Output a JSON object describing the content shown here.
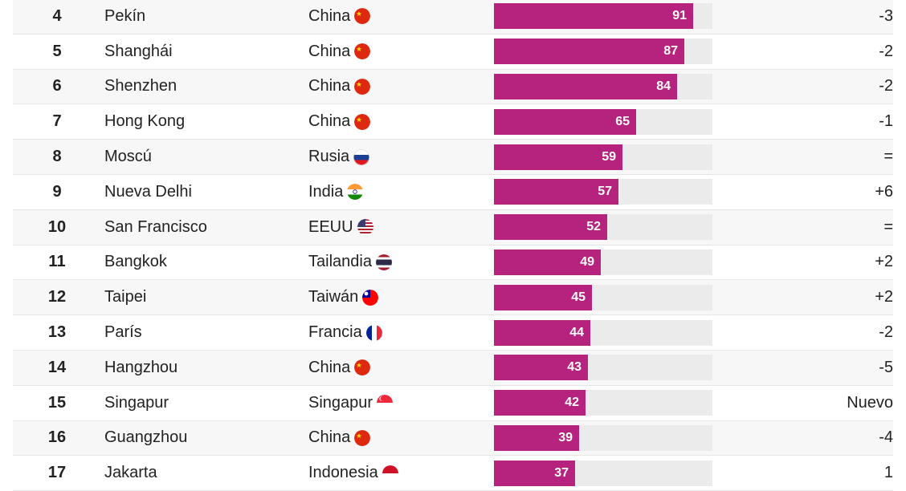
{
  "chart_data": {
    "type": "bar",
    "xlim": [
      0,
      100
    ],
    "rows": [
      {
        "rank": "4",
        "city": "Pekín",
        "country": "China",
        "flag": "china-flag-icon",
        "value": 91,
        "change": "-3"
      },
      {
        "rank": "5",
        "city": "Shanghái",
        "country": "China",
        "flag": "china-flag-icon",
        "value": 87,
        "change": "-2"
      },
      {
        "rank": "6",
        "city": "Shenzhen",
        "country": "China",
        "flag": "china-flag-icon",
        "value": 84,
        "change": "-2"
      },
      {
        "rank": "7",
        "city": "Hong Kong",
        "country": "China",
        "flag": "china-flag-icon",
        "value": 65,
        "change": "-1"
      },
      {
        "rank": "8",
        "city": "Moscú",
        "country": "Rusia",
        "flag": "russia-flag-icon",
        "value": 59,
        "change": "="
      },
      {
        "rank": "9",
        "city": "Nueva Delhi",
        "country": "India",
        "flag": "india-flag-icon",
        "value": 57,
        "change": "+6"
      },
      {
        "rank": "10",
        "city": "San Francisco",
        "country": "EEUU",
        "flag": "usa-flag-icon",
        "value": 52,
        "change": "="
      },
      {
        "rank": "11",
        "city": "Bangkok",
        "country": "Tailandia",
        "flag": "thailand-flag-icon",
        "value": 49,
        "change": "+2"
      },
      {
        "rank": "12",
        "city": "Taipei",
        "country": "Taiwán",
        "flag": "taiwan-flag-icon",
        "value": 45,
        "change": "+2"
      },
      {
        "rank": "13",
        "city": "París",
        "country": "Francia",
        "flag": "france-flag-icon",
        "value": 44,
        "change": "-2"
      },
      {
        "rank": "14",
        "city": "Hangzhou",
        "country": "China",
        "flag": "china-flag-icon",
        "value": 43,
        "change": "-5"
      },
      {
        "rank": "15",
        "city": "Singapur",
        "country": "Singapur",
        "flag": "singapore-flag-icon",
        "value": 42,
        "change": "Nuevo"
      },
      {
        "rank": "16",
        "city": "Guangzhou",
        "country": "China",
        "flag": "china-flag-icon",
        "value": 39,
        "change": "-4"
      },
      {
        "rank": "17",
        "city": "Jakarta",
        "country": "Indonesia",
        "flag": "indonesia-flag-icon",
        "value": 37,
        "change": "1"
      }
    ]
  },
  "colors": {
    "bar": "#b5237e",
    "track": "#ebebeb"
  }
}
